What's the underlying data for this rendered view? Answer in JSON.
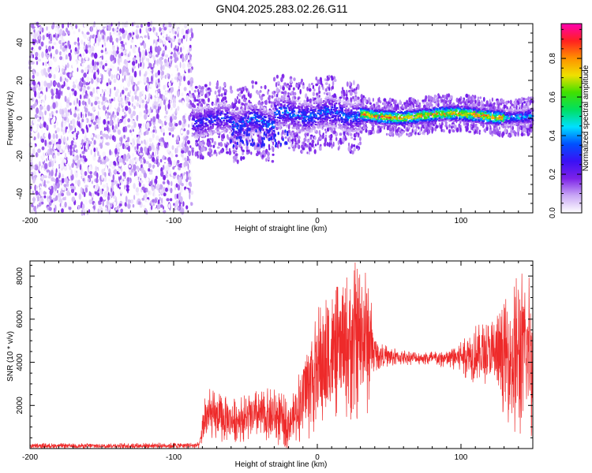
{
  "chart_data": [
    {
      "type": "heatmap",
      "title": "GN04.2025.283.02.26.G11",
      "xlabel": "Height of straight line (km)",
      "ylabel": "Frequency (Hz)",
      "xlim": [
        -200,
        150
      ],
      "ylim": [
        -50,
        50
      ],
      "xticks": [
        -200,
        -100,
        0,
        100
      ],
      "yticks": [
        -40,
        -20,
        0,
        20,
        40
      ],
      "colorbar": {
        "label": "Normalized spectral amplitude",
        "ticks": [
          0.0,
          0.2,
          0.4,
          0.6,
          0.8
        ],
        "range": [
          0.0,
          0.98
        ],
        "colors": [
          "#ffffff",
          "#c9a8f5",
          "#7d22e8",
          "#3a10f5",
          "#0050ff",
          "#00e0ff",
          "#00e060",
          "#40e000",
          "#f0e000",
          "#ff9000",
          "#ff2020",
          "#ff00b0"
        ]
      },
      "regions": [
        {
          "name": "noise",
          "x_range": [
            -200,
            -87
          ],
          "freq_range": [
            -50,
            50
          ],
          "amplitude_range": [
            0.0,
            0.18
          ]
        },
        {
          "name": "signal",
          "x_range": [
            -87,
            150
          ],
          "freq_center_hz": 1,
          "freq_halfwidth_hz": 5,
          "peak_amplitude": 0.95
        }
      ]
    },
    {
      "type": "line",
      "xlabel": "Height of straight line (km)",
      "ylabel": "SNR (10 * v/v)",
      "xlim": [
        -200,
        150
      ],
      "ylim": [
        0,
        8700
      ],
      "xticks": [
        -200,
        -100,
        0,
        100
      ],
      "yticks": [
        2000,
        4000,
        6000,
        8000
      ],
      "color": "#ee2a2a",
      "envelope": {
        "x": [
          -200,
          -150,
          -100,
          -82,
          -78,
          -60,
          -40,
          -28,
          -20,
          -15,
          -5,
          5,
          15,
          25,
          35,
          40,
          50,
          70,
          90,
          100,
          110,
          120,
          130,
          140,
          150
        ],
        "y_low": [
          0,
          0,
          0,
          0,
          200,
          300,
          300,
          100,
          0,
          200,
          400,
          800,
          1500,
          1200,
          1500,
          3600,
          3800,
          3900,
          3700,
          3400,
          3000,
          2800,
          1600,
          200,
          400
        ],
        "y_high": [
          250,
          250,
          280,
          300,
          2900,
          2300,
          2800,
          2800,
          2300,
          3000,
          6000,
          7200,
          7600,
          8700,
          8700,
          5200,
          4700,
          4500,
          4600,
          5200,
          5800,
          6000,
          6800,
          8300,
          8600
        ]
      }
    }
  ]
}
